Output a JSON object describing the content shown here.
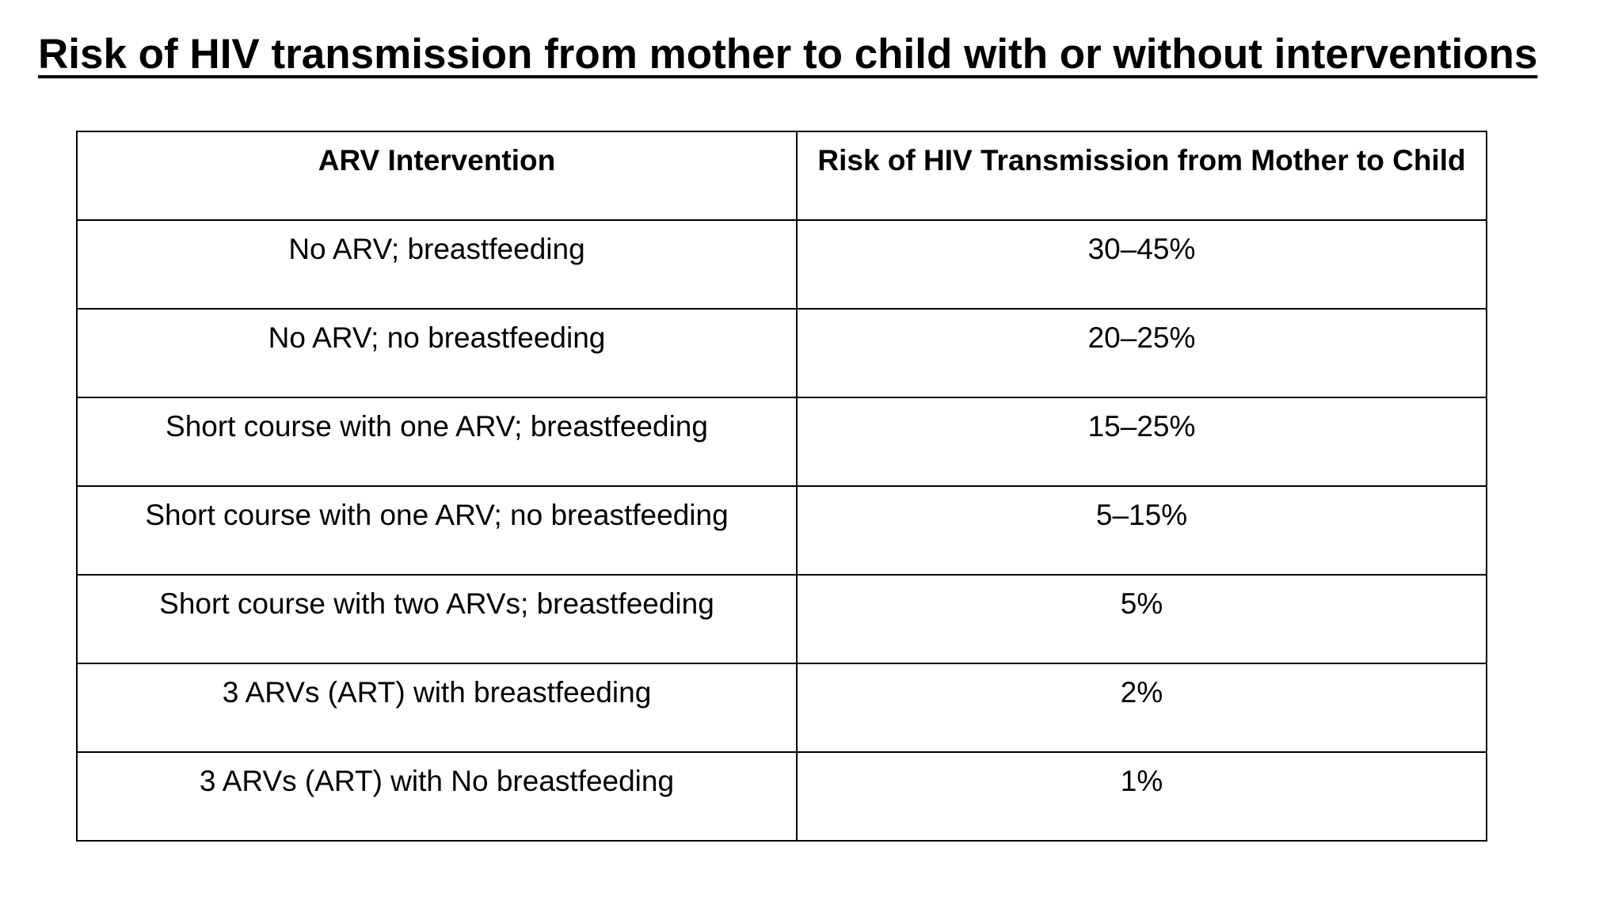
{
  "title": "Risk of HIV transmission from mother to child with or without interventions",
  "table": {
    "headers": [
      "ARV Intervention",
      "Risk of HIV Transmission from Mother to Child"
    ],
    "rows": [
      [
        "No ARV; breastfeeding",
        "30–45%"
      ],
      [
        "No ARV; no breastfeeding",
        "20–25%"
      ],
      [
        "Short course with one ARV; breastfeeding",
        "15–25%"
      ],
      [
        "Short course with one ARV; no breastfeeding",
        "5–15%"
      ],
      [
        "Short course with two ARVs; breastfeeding",
        "5%"
      ],
      [
        "3 ARVs (ART) with breastfeeding",
        "2%"
      ],
      [
        "3 ARVs (ART) with No breastfeeding",
        "1%"
      ]
    ]
  }
}
